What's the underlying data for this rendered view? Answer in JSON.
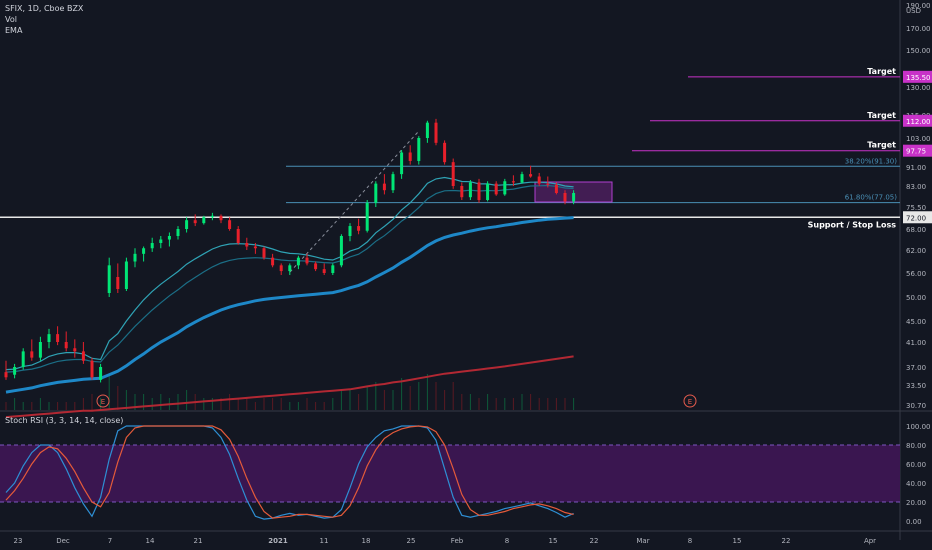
{
  "header": {
    "symbol_line": "SFIX, 1D, Cboe BZX",
    "vol_label": "Vol",
    "ema_label": "EMA"
  },
  "rsi_panel": {
    "title": "Stoch RSI (3, 3, 14, 14, close)"
  },
  "colors": {
    "up": "#00e676",
    "down": "#e8202b",
    "fib": "#4a8fb5",
    "target": "#c832c8",
    "ema_thick": "#1e88c8",
    "ema_slow": "#b22833",
    "k_line": "#2e8fd4",
    "d_line": "#e45a3a",
    "rsi_band": "#3a1650"
  },
  "chart_data": [
    {
      "type": "candlestick",
      "x_ticks": [
        "23",
        "Dec",
        "7",
        "14",
        "21",
        "2021",
        "11",
        "18",
        "25",
        "Feb",
        "8",
        "15",
        "22",
        "Mar",
        "8",
        "15",
        "22",
        "Apr"
      ],
      "y_ticks": [
        "190.00",
        "170.00",
        "150.00",
        "130.00",
        "115.00",
        "103.00",
        "91.00",
        "83.00",
        "75.50",
        "68.00",
        "62.00",
        "56.00",
        "50.00",
        "45.00",
        "41.00",
        "37.00",
        "33.50",
        "30.70"
      ],
      "currency": "USD",
      "candles": [
        [
          36.0,
          38.0,
          34.5,
          35.0
        ],
        [
          35.5,
          37.5,
          34.8,
          37.0
        ],
        [
          37.0,
          40.0,
          36.5,
          39.5
        ],
        [
          39.5,
          41.5,
          38.0,
          38.5
        ],
        [
          38.5,
          42.0,
          38.0,
          41.0
        ],
        [
          41.0,
          43.5,
          40.0,
          42.5
        ],
        [
          42.5,
          44.0,
          40.5,
          41.0
        ],
        [
          41.0,
          43.0,
          39.5,
          40.0
        ],
        [
          40.0,
          41.5,
          38.5,
          39.5
        ],
        [
          39.5,
          41.0,
          37.5,
          38.0
        ],
        [
          38.0,
          38.5,
          34.5,
          35.0
        ],
        [
          34.5,
          37.5,
          34.0,
          37.0
        ],
        [
          51.0,
          60.0,
          50.0,
          58.0
        ],
        [
          55.0,
          58.5,
          51.0,
          52.0
        ],
        [
          52.0,
          60.0,
          51.5,
          59.0
        ],
        [
          59.0,
          62.5,
          57.5,
          61.0
        ],
        [
          61.0,
          63.0,
          59.0,
          62.5
        ],
        [
          62.5,
          65.5,
          61.5,
          64.0
        ],
        [
          64.0,
          66.0,
          62.5,
          65.0
        ],
        [
          65.0,
          67.0,
          63.0,
          66.0
        ],
        [
          66.0,
          69.0,
          65.0,
          68.0
        ],
        [
          68.0,
          72.0,
          67.0,
          71.0
        ],
        [
          71.0,
          73.0,
          69.0,
          70.0
        ],
        [
          70.0,
          72.5,
          69.5,
          72.0
        ],
        [
          72.0,
          73.5,
          71.0,
          72.5
        ],
        [
          72.5,
          73.0,
          70.0,
          71.0
        ],
        [
          71.0,
          72.0,
          67.5,
          68.0
        ],
        [
          68.0,
          69.0,
          63.5,
          64.0
        ],
        [
          64.0,
          65.5,
          62.0,
          63.0
        ],
        [
          63.0,
          64.0,
          61.0,
          62.5
        ],
        [
          62.5,
          63.0,
          59.5,
          60.0
        ],
        [
          60.0,
          61.0,
          57.5,
          58.0
        ],
        [
          58.0,
          58.5,
          55.5,
          56.5
        ],
        [
          56.5,
          58.5,
          55.5,
          58.0
        ],
        [
          58.0,
          60.5,
          57.0,
          60.0
        ],
        [
          60.0,
          61.0,
          58.0,
          58.5
        ],
        [
          58.5,
          59.0,
          56.5,
          57.0
        ],
        [
          57.0,
          58.5,
          55.5,
          56.0
        ],
        [
          56.0,
          58.5,
          55.5,
          58.0
        ],
        [
          58.0,
          66.5,
          57.5,
          66.0
        ],
        [
          66.0,
          70.0,
          64.5,
          69.0
        ],
        [
          69.0,
          71.5,
          66.5,
          67.5
        ],
        [
          67.5,
          78.0,
          67.0,
          77.0
        ],
        [
          77.0,
          85.0,
          75.5,
          84.0
        ],
        [
          84.0,
          88.0,
          80.0,
          81.5
        ],
        [
          81.5,
          89.0,
          80.5,
          88.0
        ],
        [
          88.0,
          98.0,
          86.0,
          97.0
        ],
        [
          97.0,
          100.0,
          92.0,
          93.5
        ],
        [
          93.5,
          104.0,
          92.0,
          103.0
        ],
        [
          103.0,
          112.0,
          101.0,
          111.0
        ],
        [
          111.0,
          113.0,
          100.0,
          101.0
        ],
        [
          101.0,
          102.0,
          92.0,
          93.0
        ],
        [
          93.0,
          94.5,
          82.0,
          83.0
        ],
        [
          83.0,
          84.5,
          78.0,
          79.0
        ],
        [
          79.0,
          85.5,
          78.0,
          84.5
        ],
        [
          84.5,
          86.0,
          77.0,
          78.0
        ],
        [
          78.0,
          85.0,
          77.5,
          84.0
        ],
        [
          84.0,
          85.0,
          79.5,
          80.0
        ],
        [
          80.0,
          86.0,
          79.5,
          85.0
        ],
        [
          85.0,
          87.5,
          83.0,
          84.5
        ],
        [
          84.5,
          89.0,
          84.0,
          88.0
        ],
        [
          88.0,
          91.5,
          86.5,
          87.0
        ],
        [
          87.0,
          88.5,
          83.0,
          84.0
        ],
        [
          84.0,
          87.0,
          82.5,
          83.5
        ],
        [
          83.5,
          84.5,
          80.0,
          80.5
        ],
        [
          80.5,
          81.5,
          76.5,
          77.5
        ],
        [
          77.5,
          81.5,
          76.5,
          80.5
        ]
      ],
      "volume": [
        2,
        3,
        2,
        2,
        3,
        2,
        2,
        2,
        2,
        3,
        4,
        3,
        9,
        6,
        5,
        4,
        4,
        3,
        4,
        3,
        4,
        5,
        4,
        3,
        3,
        3,
        4,
        3,
        3,
        2,
        3,
        3,
        3,
        2,
        2,
        3,
        2,
        2,
        3,
        5,
        5,
        4,
        6,
        7,
        5,
        5,
        8,
        6,
        7,
        9,
        7,
        5,
        7,
        4,
        4,
        3,
        4,
        3,
        3,
        3,
        4,
        4,
        3,
        3,
        3,
        3,
        3
      ],
      "ema_fast": [
        36.5,
        36.6,
        37.1,
        37.3,
        37.9,
        38.7,
        39.1,
        39.3,
        39.3,
        39.1,
        38.4,
        38.2,
        41.2,
        42.6,
        45.0,
        47.3,
        49.4,
        51.4,
        53.2,
        54.8,
        56.4,
        58.3,
        59.7,
        61.0,
        62.3,
        63.2,
        63.7,
        63.8,
        63.7,
        63.5,
        63.0,
        62.3,
        61.5,
        61.1,
        61.0,
        60.7,
        60.2,
        59.6,
        59.4,
        60.3,
        61.7,
        62.5,
        64.3,
        66.9,
        68.9,
        71.3,
        74.5,
        77.0,
        80.2,
        84.1,
        86.0,
        86.6,
        85.9,
        84.9,
        84.8,
        83.9,
        83.9,
        83.3,
        83.5,
        83.6,
        84.2,
        84.6,
        84.6,
        84.4,
        83.9,
        83.0,
        82.7
      ],
      "ema_mid": [
        36.0,
        36.1,
        36.4,
        36.6,
        37.0,
        37.5,
        37.9,
        38.1,
        38.2,
        38.2,
        37.9,
        37.8,
        39.4,
        40.5,
        42.2,
        44.0,
        45.6,
        47.3,
        48.8,
        50.3,
        51.8,
        53.5,
        54.9,
        56.3,
        57.6,
        58.6,
        59.3,
        59.7,
        59.9,
        60.0,
        59.9,
        59.7,
        59.4,
        59.2,
        59.2,
        59.1,
        58.9,
        58.7,
        58.6,
        59.2,
        60.2,
        60.9,
        62.4,
        64.5,
        66.1,
        68.1,
        70.7,
        72.7,
        75.3,
        78.4,
        80.3,
        81.3,
        81.4,
        81.2,
        81.5,
        81.2,
        81.4,
        81.3,
        81.6,
        81.9,
        82.5,
        83.0,
        83.1,
        83.2,
        82.9,
        82.3,
        82.1
      ],
      "ema_thick": [
        32.5,
        32.7,
        32.9,
        33.1,
        33.4,
        33.7,
        34.0,
        34.2,
        34.4,
        34.6,
        34.7,
        34.8,
        35.5,
        36.2,
        37.2,
        38.2,
        39.1,
        40.1,
        41.0,
        41.9,
        42.8,
        43.9,
        44.8,
        45.7,
        46.5,
        47.3,
        47.9,
        48.4,
        48.8,
        49.2,
        49.5,
        49.7,
        49.9,
        50.1,
        50.3,
        50.5,
        50.7,
        50.9,
        51.1,
        51.6,
        52.3,
        52.9,
        53.8,
        55.0,
        56.1,
        57.3,
        58.8,
        60.1,
        61.6,
        63.3,
        64.6,
        65.6,
        66.3,
        66.8,
        67.4,
        67.9,
        68.4,
        68.8,
        69.3,
        69.7,
        70.2,
        70.6,
        71.0,
        71.3,
        71.5,
        71.7,
        71.9
      ],
      "ema_slow": [
        29.0,
        29.1,
        29.2,
        29.3,
        29.4,
        29.5,
        29.6,
        29.7,
        29.8,
        29.9,
        29.9,
        30.0,
        30.1,
        30.2,
        30.3,
        30.4,
        30.5,
        30.6,
        30.7,
        30.8,
        30.9,
        31.0,
        31.1,
        31.2,
        31.3,
        31.4,
        31.5,
        31.6,
        31.7,
        31.8,
        31.9,
        32.0,
        32.1,
        32.2,
        32.3,
        32.4,
        32.5,
        32.6,
        32.7,
        32.8,
        32.9,
        33.1,
        33.3,
        33.5,
        33.7,
        34.0,
        34.2,
        34.5,
        34.8,
        35.1,
        35.4,
        35.7,
        35.9,
        36.1,
        36.3,
        36.5,
        36.7,
        36.9,
        37.1,
        37.3,
        37.5,
        37.7,
        37.9,
        38.1,
        38.3,
        38.5,
        38.7
      ],
      "fib_levels": [
        {
          "label": "38.20%(91.30)",
          "value": 91.3
        },
        {
          "label": "61.80%(77.05)",
          "value": 77.05
        }
      ],
      "targets": [
        {
          "label": "Target",
          "value": 135.5,
          "price_label": "135.50"
        },
        {
          "label": "Target",
          "value": 112.0,
          "price_label": "112.00"
        },
        {
          "label": "Target",
          "value": 97.75,
          "price_label": "97.75"
        }
      ],
      "support": {
        "label": "Support / Stop Loss",
        "value": 72.0,
        "price_label": "72.00"
      },
      "earnings_marker": "E"
    },
    {
      "type": "line",
      "title": "Stoch RSI (3, 3, 14, 14, close)",
      "y_ticks": [
        "100.00",
        "80.00",
        "60.00",
        "40.00",
        "20.00",
        "0.00"
      ],
      "ylim": [
        0,
        100
      ],
      "band": [
        20,
        80
      ],
      "series": [
        {
          "values": [
            30,
            40,
            58,
            72,
            80,
            80,
            72,
            55,
            35,
            18,
            5,
            25,
            65,
            95,
            100,
            100,
            100,
            100,
            100,
            100,
            100,
            100,
            100,
            100,
            98,
            88,
            70,
            45,
            22,
            5,
            2,
            3,
            6,
            8,
            6,
            7,
            5,
            3,
            4,
            12,
            35,
            60,
            78,
            88,
            95,
            97,
            100,
            100,
            100,
            98,
            85,
            55,
            25,
            6,
            4,
            6,
            8,
            10,
            13,
            15,
            17,
            19,
            16,
            13,
            9,
            4,
            8
          ]
        },
        {
          "values": [
            22,
            32,
            45,
            60,
            72,
            78,
            76,
            66,
            52,
            35,
            20,
            15,
            30,
            62,
            88,
            98,
            100,
            100,
            100,
            100,
            100,
            100,
            100,
            100,
            100,
            96,
            86,
            68,
            45,
            25,
            10,
            3,
            4,
            5,
            7,
            7,
            6,
            5,
            4,
            6,
            16,
            35,
            58,
            75,
            87,
            93,
            97,
            99,
            100,
            99,
            94,
            80,
            55,
            28,
            12,
            6,
            6,
            8,
            10,
            13,
            15,
            17,
            18,
            16,
            13,
            9,
            7
          ]
        }
      ]
    }
  ]
}
